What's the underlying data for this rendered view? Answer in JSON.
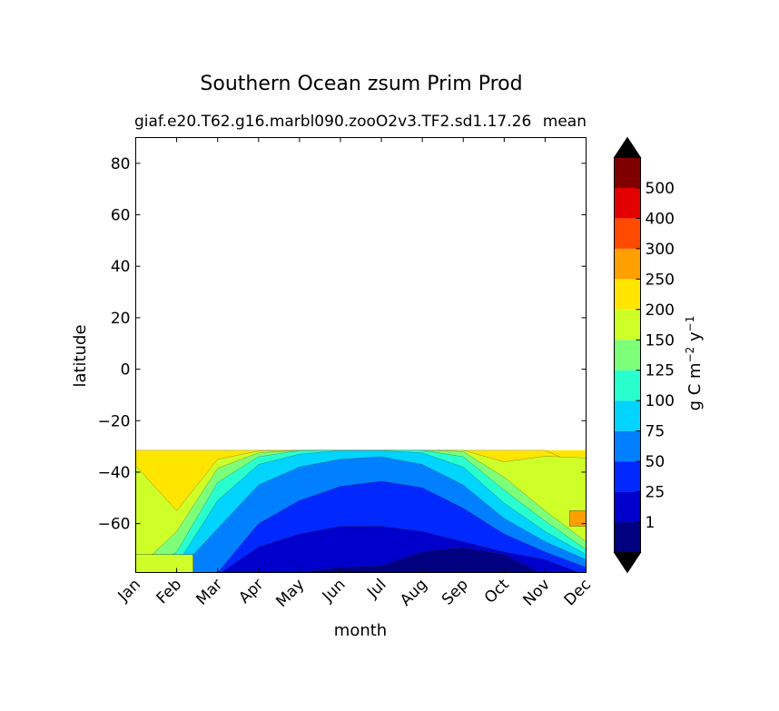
{
  "chart_data": {
    "type": "contourf",
    "title": "Southern Ocean zsum Prim Prod",
    "subtitle_left": "giaf.e20.T62.g16.marbl090.zooO2v3.TF2.sd1.17.26",
    "subtitle_right": "mean",
    "xlabel": "month",
    "ylabel": "latitude",
    "x_ticks": [
      "Jan",
      "Feb",
      "Mar",
      "Apr",
      "May",
      "Jun",
      "Jul",
      "Aug",
      "Sep",
      "Oct",
      "Nov",
      "Dec"
    ],
    "ylim": [
      -79,
      90
    ],
    "y_ticks": [
      80,
      60,
      40,
      20,
      0,
      -20,
      -40,
      -60
    ],
    "y_tick_labels": [
      "80",
      "60",
      "40",
      "20",
      "0",
      "−20",
      "−40",
      "−60"
    ],
    "data_lat_range": [
      -79,
      -31.5
    ],
    "colorbar": {
      "label_main": "g C m",
      "label_exp1": "−2",
      "label_mid": " y",
      "label_exp2": "−1",
      "levels": [
        0,
        1,
        25,
        50,
        75,
        100,
        125,
        150,
        200,
        250,
        300,
        400,
        500,
        600
      ],
      "tick_labels": [
        "1",
        "25",
        "50",
        "75",
        "100",
        "125",
        "150",
        "200",
        "250",
        "300",
        "400",
        "500"
      ],
      "colors": [
        "#000080",
        "#0000cd",
        "#0028ff",
        "#0080ff",
        "#00d4ff",
        "#29ffce",
        "#7dff7a",
        "#ceff29",
        "#ffe500",
        "#ff9f00",
        "#ff4a00",
        "#e30000",
        "#800000"
      ],
      "under_color": "#000000",
      "over_color": "#000000"
    },
    "contours": [
      {
        "level": 1,
        "lats": [
          -90,
          -90,
          -79,
          -79,
          -79,
          -77.0,
          -76.4,
          -71.0,
          -69.2,
          -72.0,
          -80,
          -90
        ]
      },
      {
        "level": 25,
        "lats": [
          -90,
          -90,
          -80,
          -69.0,
          -64.0,
          -61.0,
          -61.0,
          -63.0,
          -67.0,
          -71.0,
          -74.0,
          -80
        ]
      },
      {
        "level": 50,
        "lats": [
          -90,
          -90,
          -79,
          -60.0,
          -51.0,
          -45.5,
          -43.5,
          -46.0,
          -54.0,
          -64.0,
          -71.0,
          -77.0
        ]
      },
      {
        "level": 75,
        "lats": [
          -90,
          -79,
          -62.0,
          -45.0,
          -38.0,
          -35.0,
          -34.0,
          -37.0,
          -45.0,
          -58.0,
          -67.0,
          -74.0
        ]
      },
      {
        "level": 100,
        "lats": [
          -90,
          -76.0,
          -51.0,
          -37.0,
          -33.0,
          -31.6,
          -31.6,
          -32.5,
          -38.0,
          -52.0,
          -63.0,
          -72.0
        ]
      },
      {
        "level": 125,
        "lats": [
          -90,
          -71.0,
          -44.0,
          -34.0,
          -31.6,
          -31.5,
          -31.5,
          -31.5,
          -34.0,
          -47.0,
          -59.0,
          -70.0
        ]
      },
      {
        "level": 150,
        "lats": [
          -78.0,
          -63.0,
          -38.5,
          -32.5,
          -31.5,
          -31.5,
          -31.5,
          -31.5,
          -32.0,
          -42.0,
          -55.0,
          -67.0
        ]
      },
      {
        "level": 200,
        "lats": [
          -37.5,
          -55.0,
          -35.0,
          -31.8,
          -31.5,
          -31.5,
          -31.5,
          -31.5,
          -31.5,
          -36.0,
          -33.8,
          -34.5
        ]
      },
      {
        "level": 250,
        "lats": [
          -31.4,
          -31.4,
          -31.4,
          -31.4,
          -31.4,
          -31.4,
          -31.4,
          -31.4,
          -31.4,
          -31.4,
          -31.4,
          -38.5
        ]
      }
    ],
    "patches": [
      {
        "level_index": 7,
        "month_span": [
          0,
          1.4
        ],
        "lats": [
          [
            -72,
            -79
          ],
          [
            -79,
            -79
          ]
        ],
        "note": "high near Antarctic coast Jan"
      },
      {
        "level_index": 9,
        "month_span": [
          10.6,
          11
        ],
        "lats": [
          [
            -55,
            -61
          ],
          [
            -55,
            -61
          ]
        ],
        "note": "orange patch near Dec"
      }
    ]
  }
}
